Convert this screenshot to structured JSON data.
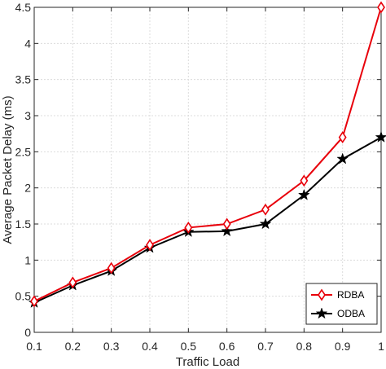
{
  "chart_data": {
    "type": "line",
    "xlabel": "Traffic Load",
    "ylabel": "Average Packet Delay (ms)",
    "x": [
      0.1,
      0.2,
      0.3,
      0.4,
      0.5,
      0.6,
      0.7,
      0.8,
      0.9,
      1.0
    ],
    "xticks": [
      "0.1",
      "0.2",
      "0.3",
      "0.4",
      "0.5",
      "0.6",
      "0.7",
      "0.8",
      "0.9",
      "1"
    ],
    "yticks": [
      "0",
      "0.5",
      "1",
      "1.5",
      "2",
      "2.5",
      "3",
      "3.5",
      "4",
      "4.5"
    ],
    "xlim": [
      0.1,
      1.0
    ],
    "ylim": [
      0,
      4.5
    ],
    "grid": true,
    "legend_position": "bottom-right",
    "series": [
      {
        "name": "RDBA",
        "color": "#e8000b",
        "marker": "diamond",
        "values": [
          0.43,
          0.69,
          0.89,
          1.21,
          1.45,
          1.5,
          1.7,
          2.1,
          2.7,
          4.5
        ]
      },
      {
        "name": "ODBA",
        "color": "#000000",
        "marker": "star",
        "values": [
          0.41,
          0.65,
          0.85,
          1.17,
          1.39,
          1.4,
          1.5,
          1.9,
          2.4,
          2.7
        ]
      }
    ]
  }
}
